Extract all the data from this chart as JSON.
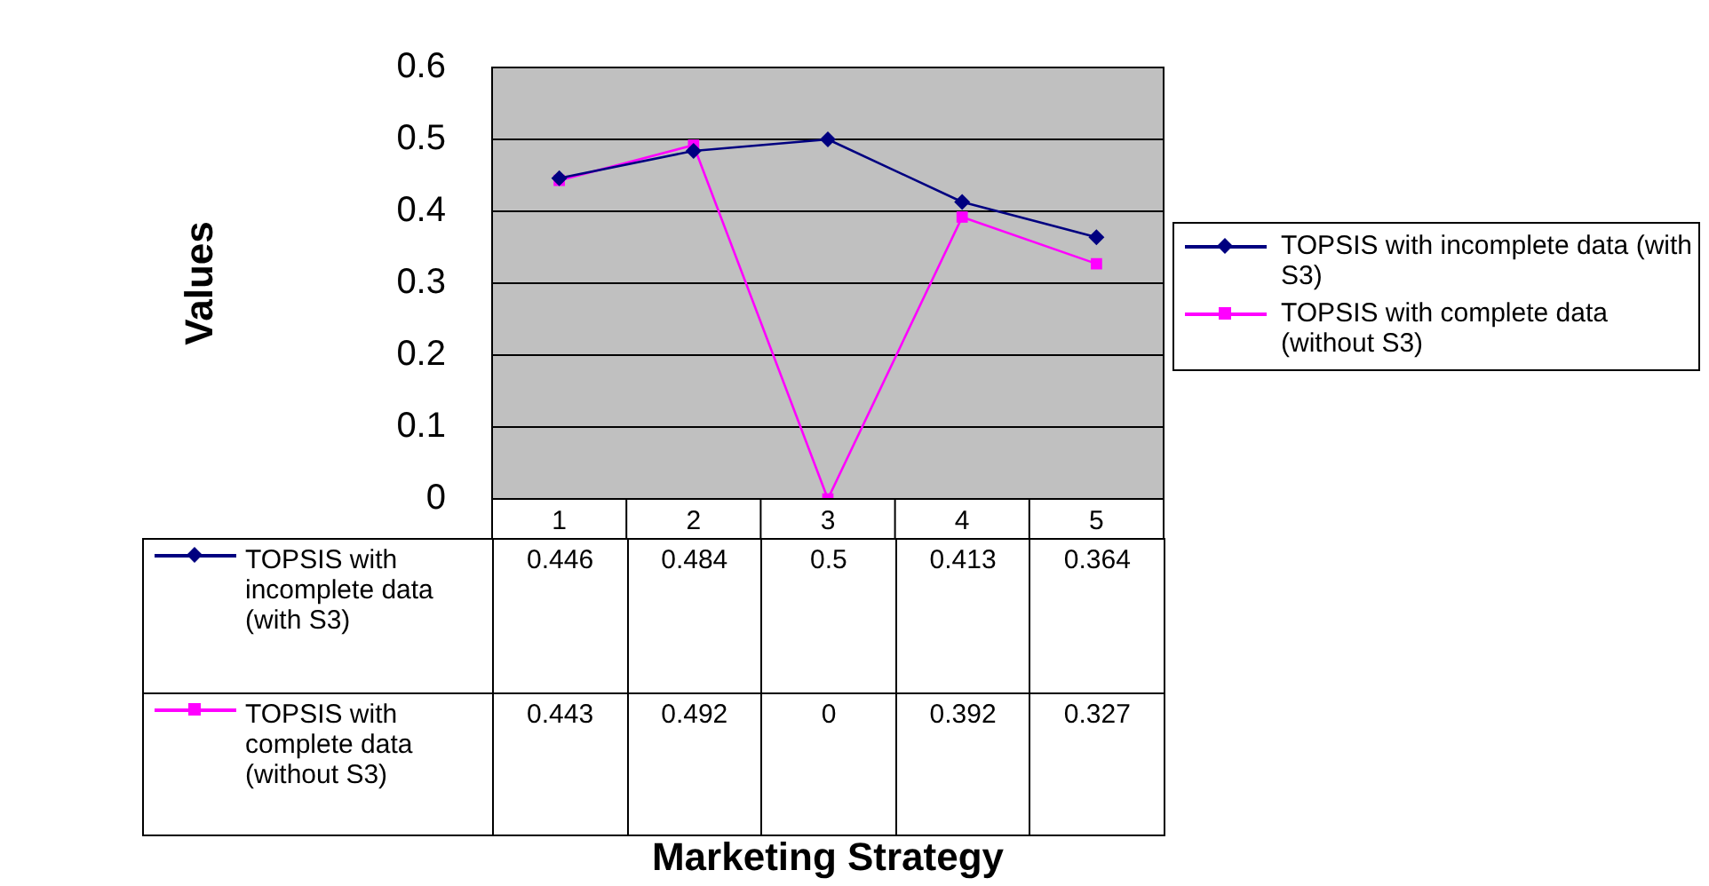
{
  "chart_data": {
    "type": "line",
    "annotations": [
      "Marketing Strategy"
    ],
    "ylabel": "Values",
    "categories": [
      "1",
      "2",
      "3",
      "4",
      "5"
    ],
    "series": [
      {
        "name": "TOPSIS with incomplete data (with S3)",
        "color": "#000080",
        "marker": "diamond",
        "values": [
          0.446,
          0.484,
          0.5,
          0.413,
          0.364
        ]
      },
      {
        "name": "TOPSIS with complete data (without S3)",
        "color": "#ff00ff",
        "marker": "square",
        "values": [
          0.443,
          0.492,
          0,
          0.392,
          0.327
        ]
      }
    ],
    "ylim": [
      0,
      0.6
    ],
    "yticks": [
      0,
      0.1,
      0.2,
      0.3,
      0.4,
      0.5,
      0.6
    ],
    "grid": "y",
    "legend": "right",
    "data_labels": true
  }
}
